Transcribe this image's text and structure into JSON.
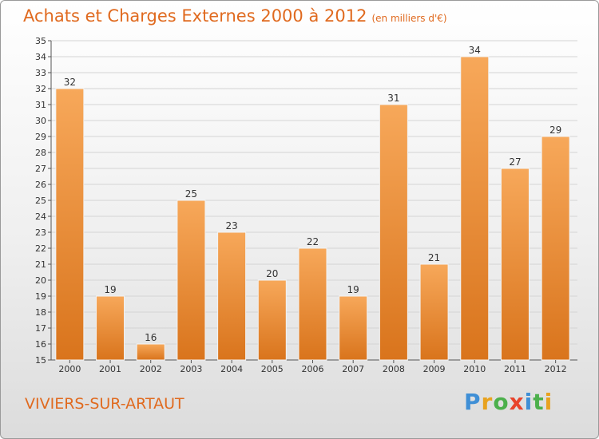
{
  "header": {
    "title": "Achats et Charges Externes 2000 à 2012",
    "subtitle": "(en milliers d'€)"
  },
  "footer": {
    "commune": "VIVIERS-SUR-ARTAUT",
    "brand_letters": [
      "P",
      "r",
      "o",
      "x",
      "i",
      "t",
      "i"
    ],
    "brand_colors": [
      "#3f8fd6",
      "#e8a21f",
      "#4cb04c",
      "#e8442c",
      "#3f8fd6",
      "#4cb04c",
      "#e8a21f"
    ]
  },
  "chart_data": {
    "type": "bar",
    "categories": [
      "2000",
      "2001",
      "2002",
      "2003",
      "2004",
      "2005",
      "2006",
      "2007",
      "2008",
      "2009",
      "2010",
      "2011",
      "2012"
    ],
    "values": [
      32,
      19,
      16,
      25,
      23,
      20,
      22,
      19,
      31,
      21,
      34,
      27,
      29
    ],
    "ylim": [
      15,
      35
    ],
    "yticks": [
      15,
      16,
      17,
      18,
      19,
      20,
      21,
      22,
      23,
      24,
      25,
      26,
      27,
      28,
      29,
      30,
      31,
      32,
      33,
      34,
      35
    ],
    "grid": true,
    "bar_color_light": "#f7a85a",
    "bar_color_dark": "#d9741c"
  }
}
